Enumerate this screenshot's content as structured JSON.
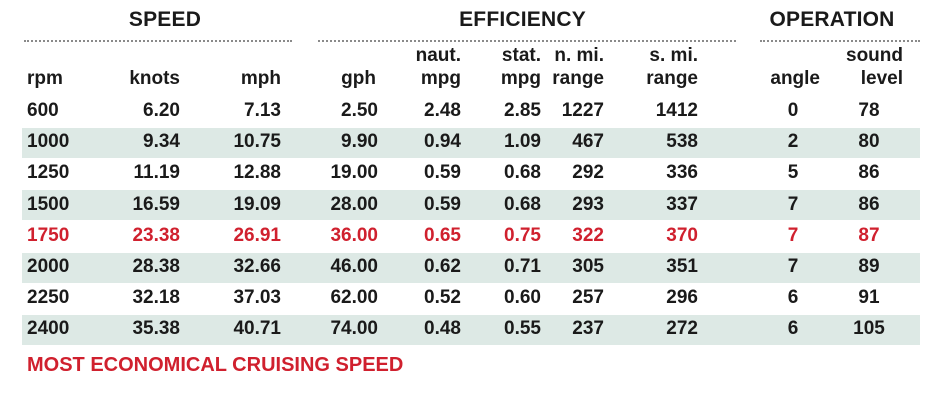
{
  "groups": {
    "speed": "SPEED",
    "efficiency": "EFFICIENCY",
    "operation": "OPERATION"
  },
  "columns": [
    {
      "line1": "",
      "line2": "rpm"
    },
    {
      "line1": "",
      "line2": "knots"
    },
    {
      "line1": "",
      "line2": "mph"
    },
    {
      "line1": "",
      "line2": "gph"
    },
    {
      "line1": "naut.",
      "line2": "mpg"
    },
    {
      "line1": "stat.",
      "line2": "mpg"
    },
    {
      "line1": "n. mi.",
      "line2": "range"
    },
    {
      "line1": "s. mi.",
      "line2": "range"
    },
    {
      "line1": "",
      "line2": "angle"
    },
    {
      "line1": "sound",
      "line2": "level"
    }
  ],
  "rows": [
    [
      "600",
      "6.20",
      "7.13",
      "2.50",
      "2.48",
      "2.85",
      "1227",
      "1412",
      "0",
      "78"
    ],
    [
      "1000",
      "9.34",
      "10.75",
      "9.90",
      "0.94",
      "1.09",
      "467",
      "538",
      "2",
      "80"
    ],
    [
      "1250",
      "11.19",
      "12.88",
      "19.00",
      "0.59",
      "0.68",
      "292",
      "336",
      "5",
      "86"
    ],
    [
      "1500",
      "16.59",
      "19.09",
      "28.00",
      "0.59",
      "0.68",
      "293",
      "337",
      "7",
      "86"
    ],
    [
      "1750",
      "23.38",
      "26.91",
      "36.00",
      "0.65",
      "0.75",
      "322",
      "370",
      "7",
      "87"
    ],
    [
      "2000",
      "28.38",
      "32.66",
      "46.00",
      "0.62",
      "0.71",
      "305",
      "351",
      "7",
      "89"
    ],
    [
      "2250",
      "32.18",
      "37.03",
      "62.00",
      "0.52",
      "0.60",
      "257",
      "296",
      "6",
      "91"
    ],
    [
      "2400",
      "35.38",
      "40.71",
      "74.00",
      "0.48",
      "0.55",
      "237",
      "272",
      "6",
      "105"
    ]
  ],
  "highlight_row": 4,
  "footnote": "MOST ECONOMICAL CRUISING SPEED",
  "colors": {
    "text": "#1a1a1a",
    "highlight": "#d0202e",
    "stripe": "#dde9e5"
  }
}
